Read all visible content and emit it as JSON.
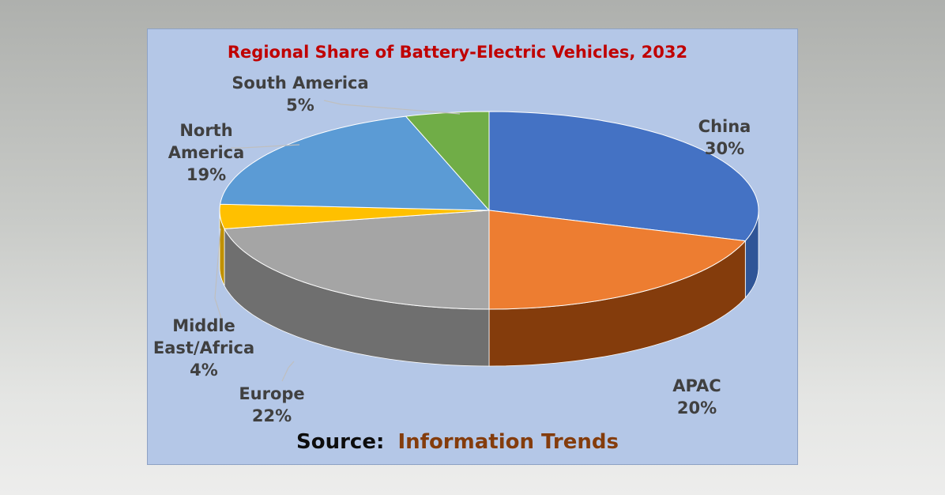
{
  "chart_data": {
    "type": "pie",
    "title": "Regional Share of Battery-Electric Vehicles, 2032",
    "slices": [
      {
        "name": "China",
        "value": 30,
        "label": "30%",
        "color": "#4472c4",
        "side_color": "#2f5597"
      },
      {
        "name": "APAC",
        "value": 20,
        "label": "20%",
        "color": "#ed7d31",
        "side_color": "#843c0c"
      },
      {
        "name": "Europe",
        "value": 22,
        "label": "22%",
        "color": "#a5a5a5",
        "side_color": "#6f6f6f"
      },
      {
        "name": "Middle East/Africa",
        "value": 4,
        "label": "4%",
        "color": "#ffc000",
        "side_color": "#bf9000"
      },
      {
        "name": "North America",
        "value": 19,
        "label": "19%",
        "color": "#5b9bd5",
        "side_color": "#2e75b6"
      },
      {
        "name": "South America",
        "value": 5,
        "label": "5%",
        "color": "#70ad47",
        "side_color": "#548235"
      }
    ],
    "label_lines": {
      "China": [
        "China",
        "30%"
      ],
      "APAC": [
        "APAC",
        "20%"
      ],
      "Europe": [
        "Europe",
        "22%"
      ],
      "Middle East/Africa": [
        "Middle",
        "East/Africa",
        "4%"
      ],
      "North America": [
        "North",
        "America",
        "19%"
      ],
      "South America": [
        "South America",
        "5%"
      ]
    },
    "source": {
      "prefix": "Source:",
      "name": "Information Trends",
      "prefix_color": "#0d0d0d",
      "name_color": "#843c0c"
    },
    "title_color": "#c00000",
    "label_color": "#404040",
    "background_color": "#b4c7e7"
  }
}
